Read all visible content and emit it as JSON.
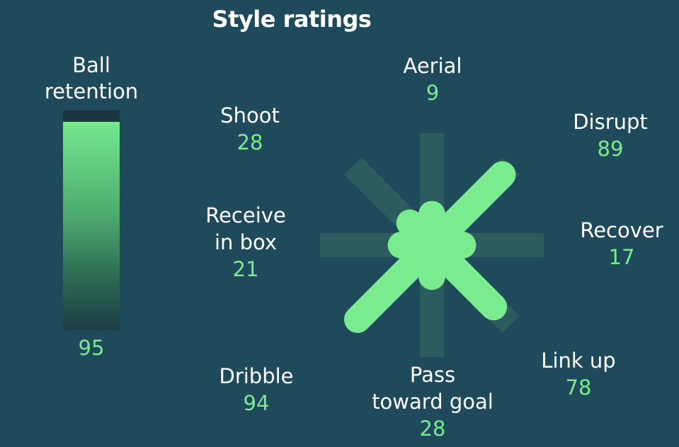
{
  "chart_data": [
    {
      "type": "bar",
      "title": "Style ratings",
      "categories": [
        "Ball retention"
      ],
      "label_lines": [
        "Ball",
        "retention"
      ],
      "values": [
        95
      ],
      "ylim": [
        0,
        100
      ]
    },
    {
      "type": "radial",
      "ylim": [
        0,
        100
      ],
      "categories": [
        "Aerial",
        "Disrupt",
        "Recover",
        "Link up",
        "Pass toward goal",
        "Dribble",
        "Receive in box",
        "Shoot"
      ],
      "values": [
        9,
        89,
        17,
        78,
        28,
        94,
        21,
        28
      ],
      "labels": [
        {
          "lines": [
            "Aerial"
          ],
          "value": "9"
        },
        {
          "lines": [
            "Disrupt"
          ],
          "value": "89"
        },
        {
          "lines": [
            "Recover"
          ],
          "value": "17"
        },
        {
          "lines": [
            "Link up"
          ],
          "value": "78"
        },
        {
          "lines": [
            "Pass",
            "toward goal"
          ],
          "value": "28"
        },
        {
          "lines": [
            "Dribble"
          ],
          "value": "94"
        },
        {
          "lines": [
            "Receive",
            "in box"
          ],
          "value": "21"
        },
        {
          "lines": [
            "Shoot"
          ],
          "value": "28"
        }
      ]
    }
  ],
  "colors": {
    "background": "#1f4a5c",
    "accent": "#7aeb8f",
    "track": "#2f5e5f",
    "text": "#ffffff"
  }
}
